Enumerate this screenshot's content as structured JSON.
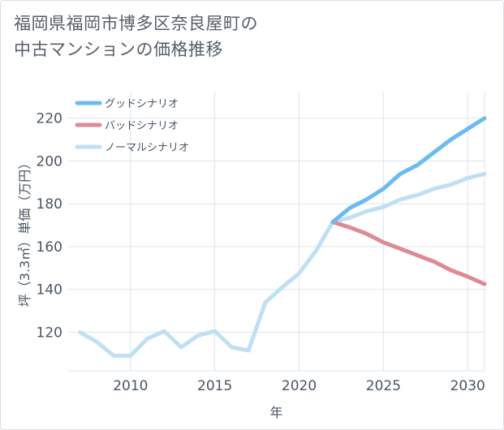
{
  "header": {
    "title_line1": "福岡県福岡市博多区奈良屋町の",
    "title_line2": "中古マンションの価格推移"
  },
  "chart_data": {
    "type": "line",
    "title": "福岡県福岡市博多区奈良屋町の中古マンションの価格推移",
    "xlabel": "年",
    "ylabel": "坪（3.3㎡）単価（万円）",
    "xlim": [
      2006.3,
      2031
    ],
    "ylim": [
      102,
      232
    ],
    "x_ticks": [
      2010,
      2015,
      2020,
      2025,
      2030
    ],
    "y_ticks": [
      120,
      140,
      160,
      180,
      200,
      220
    ],
    "grid": true,
    "legend_position": "top-left",
    "series": [
      {
        "name": "グッドシナリオ",
        "color": "#6cbbf0",
        "x": [
          2022,
          2023,
          2024,
          2025,
          2026,
          2027,
          2028,
          2029,
          2030,
          2031
        ],
        "values": [
          171.5,
          178,
          182,
          187,
          194,
          198,
          204,
          210,
          215,
          220
        ]
      },
      {
        "name": "バッドシナリオ",
        "color": "#dd8a94",
        "x": [
          2022,
          2023,
          2024,
          2025,
          2026,
          2027,
          2028,
          2029,
          2030,
          2031
        ],
        "values": [
          171.5,
          169,
          166,
          162,
          159,
          156,
          153,
          149,
          146,
          142.5
        ]
      },
      {
        "name": "ノーマルシナリオ",
        "color": "#bfe0f2",
        "x": [
          2007,
          2008,
          2009,
          2010,
          2011,
          2012,
          2013,
          2014,
          2015,
          2016,
          2017,
          2018,
          2019,
          2020,
          2021,
          2022,
          2023,
          2024,
          2025,
          2026,
          2027,
          2028,
          2029,
          2030,
          2031
        ],
        "values": [
          120,
          115.5,
          109,
          109,
          117,
          120.5,
          113,
          118.5,
          120.5,
          113,
          111.5,
          134,
          141,
          147.5,
          158,
          171.5,
          173.5,
          176.5,
          178.5,
          182,
          184,
          187,
          189,
          192,
          194
        ]
      }
    ]
  }
}
